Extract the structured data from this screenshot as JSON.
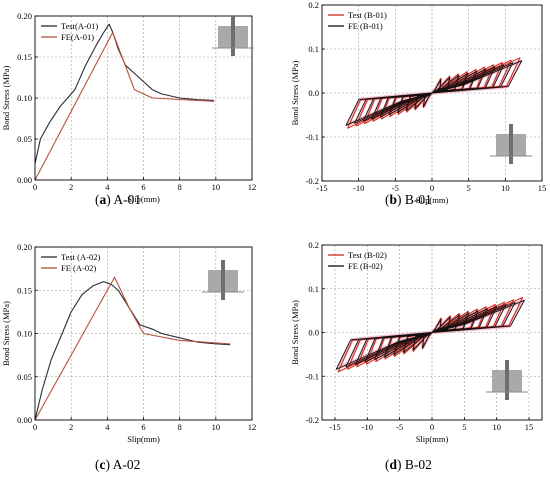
{
  "figure": {
    "panels": [
      {
        "id": "a",
        "caption_letter": "a",
        "caption_text": "A-01"
      },
      {
        "id": "b",
        "caption_letter": "b",
        "caption_text": "B-01"
      },
      {
        "id": "c",
        "caption_letter": "c",
        "caption_text": "A-02"
      },
      {
        "id": "d",
        "caption_letter": "d",
        "caption_text": "B-02"
      }
    ]
  },
  "chart_data": [
    {
      "id": "a",
      "type": "line",
      "title": "",
      "xlabel": "Slip(mm)",
      "ylabel": "Bond Stress (MPa)",
      "xlim": [
        0,
        12
      ],
      "ylim": [
        0,
        0.2
      ],
      "xticks": [
        0,
        2,
        4,
        6,
        8,
        10,
        12
      ],
      "yticks": [
        0.0,
        0.05,
        0.1,
        0.15,
        0.2
      ],
      "tick_decimals": 2,
      "grid": true,
      "legend_position": "top-left",
      "series": [
        {
          "name": "Test(A-01)",
          "color": "#2b2b3a",
          "x": [
            0,
            0.3,
            0.8,
            1.4,
            1.8,
            2.2,
            2.8,
            3.4,
            3.8,
            4.1,
            4.3,
            4.6,
            5.0,
            5.5,
            6.0,
            6.5,
            7.0,
            8.0,
            9.0,
            9.9
          ],
          "y": [
            0.02,
            0.05,
            0.07,
            0.09,
            0.1,
            0.11,
            0.14,
            0.165,
            0.18,
            0.19,
            0.18,
            0.16,
            0.14,
            0.13,
            0.12,
            0.11,
            0.105,
            0.1,
            0.098,
            0.097
          ]
        },
        {
          "name": "FE(A-01)",
          "color": "#b5523b",
          "x": [
            0,
            4.3,
            5.5,
            6.5,
            9.9
          ],
          "y": [
            0,
            0.18,
            0.11,
            0.1,
            0.096
          ]
        }
      ]
    },
    {
      "id": "b",
      "type": "line",
      "title": "",
      "xlabel": "Slip(mm)",
      "ylabel": "Bond Stress (MPa)",
      "xlim": [
        -15,
        15
      ],
      "ylim": [
        -0.2,
        0.2
      ],
      "xticks": [
        -15,
        -10,
        -5,
        0,
        5,
        10,
        15
      ],
      "yticks": [
        -0.2,
        -0.1,
        0.0,
        0.1,
        0.2
      ],
      "tick_decimals": 1,
      "grid": true,
      "legend_position": "top-left",
      "series": [
        {
          "name": "Test (B-01)",
          "color": "#cc2a1e"
        },
        {
          "name": "FE   (B-01)",
          "color": "#111111"
        }
      ],
      "hysteresis": {
        "xmin": -11.5,
        "xmax": 12.0,
        "amp_neg": -0.08,
        "amp_pos": 0.08,
        "fe_amp_neg": -0.07,
        "fe_amp_pos": 0.07
      }
    },
    {
      "id": "c",
      "type": "line",
      "title": "",
      "xlabel": "Slip(mm)",
      "ylabel": "Bond Stress (MPa)",
      "xlim": [
        0,
        12
      ],
      "ylim": [
        0,
        0.2
      ],
      "xticks": [
        0,
        2,
        4,
        6,
        8,
        10,
        12
      ],
      "yticks": [
        0.0,
        0.05,
        0.1,
        0.15,
        0.2
      ],
      "tick_decimals": 2,
      "grid": true,
      "legend_position": "top-left",
      "series": [
        {
          "name": "Test (A-02)",
          "color": "#2b2b3a",
          "x": [
            0,
            0.4,
            0.9,
            1.5,
            2.0,
            2.6,
            3.2,
            3.8,
            4.2,
            4.6,
            5.2,
            5.8,
            6.5,
            7.0,
            8.0,
            9.0,
            10.0,
            10.8
          ],
          "y": [
            0,
            0.035,
            0.07,
            0.1,
            0.125,
            0.145,
            0.155,
            0.16,
            0.157,
            0.15,
            0.13,
            0.11,
            0.105,
            0.1,
            0.095,
            0.09,
            0.088,
            0.087
          ]
        },
        {
          "name": "FE  (A-02)",
          "color": "#b5523b",
          "x": [
            0,
            4.4,
            5.2,
            6.0,
            8.0,
            10.8
          ],
          "y": [
            0,
            0.165,
            0.13,
            0.1,
            0.092,
            0.088
          ]
        }
      ]
    },
    {
      "id": "d",
      "type": "line",
      "title": "",
      "xlabel": "Slip(mm)",
      "ylabel": "Bond Stress (MPa)",
      "xlim": [
        -17,
        17
      ],
      "ylim": [
        -0.2,
        0.2
      ],
      "xticks": [
        -15,
        -10,
        -5,
        0,
        5,
        10,
        15
      ],
      "yticks": [
        -0.2,
        -0.1,
        0.0,
        0.1,
        0.2
      ],
      "tick_decimals": 1,
      "grid": true,
      "legend_position": "top-left",
      "series": [
        {
          "name": "Test (B-02)",
          "color": "#cc2a1e"
        },
        {
          "name": "FE   (B-02)",
          "color": "#111111"
        }
      ],
      "hysteresis": {
        "xmin": -14.5,
        "xmax": 14.0,
        "amp_neg": -0.09,
        "amp_pos": 0.08,
        "fe_amp_neg": -0.08,
        "fe_amp_pos": 0.07
      }
    }
  ],
  "colors": {
    "test": "#cc2a1e",
    "fe": "#111111",
    "grid": "#9a9a9a",
    "specimen": "#a9a9a9"
  }
}
